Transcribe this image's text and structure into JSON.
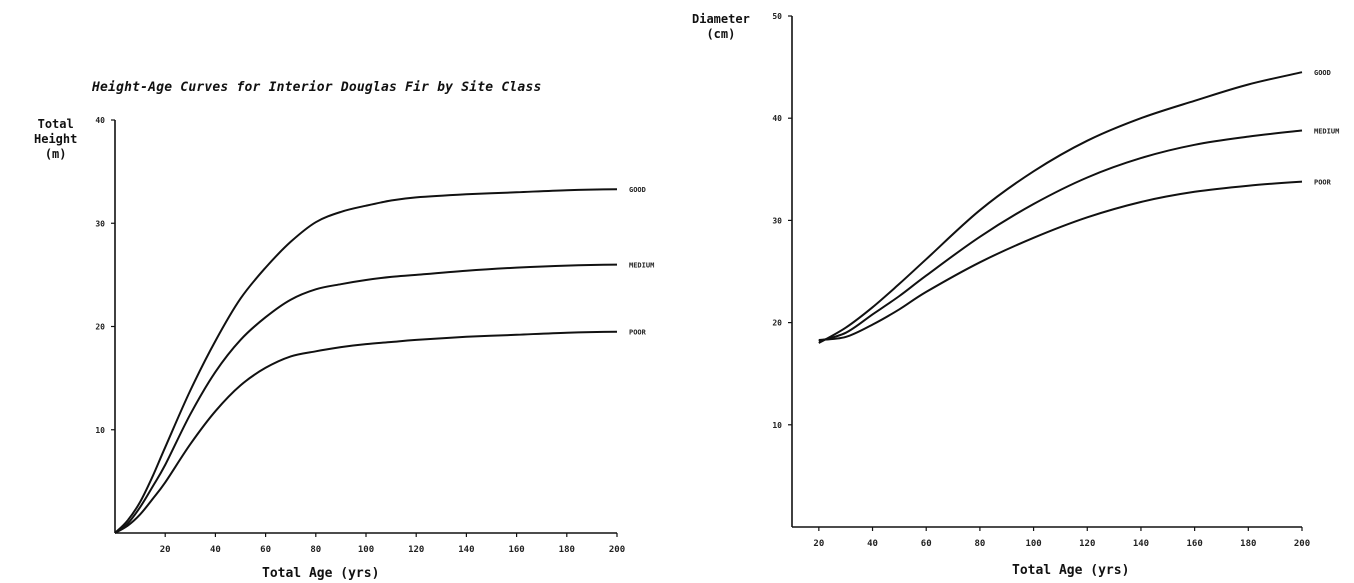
{
  "chart_data": [
    {
      "type": "line",
      "title": "Height-Age Curves for Interior Douglas Fir by Site Class",
      "ylabel_lines": [
        "Total",
        "Height",
        "(m)"
      ],
      "xlabel": "Total Age (yrs)",
      "xlim": [
        0,
        200
      ],
      "ylim": [
        0,
        40
      ],
      "xticks": [
        20,
        40,
        60,
        80,
        100,
        120,
        140,
        160,
        180,
        200
      ],
      "xtick_labels": [
        "20",
        "40",
        "60",
        "80",
        "100",
        "120",
        "140",
        "160",
        "180",
        "200"
      ],
      "yticks": [
        10,
        20,
        30,
        40
      ],
      "ytick_labels": [
        "10",
        "20",
        "30",
        "40"
      ],
      "grid": false,
      "series": [
        {
          "name": "GOOD",
          "x": [
            0,
            5,
            10,
            15,
            20,
            30,
            40,
            50,
            60,
            70,
            80,
            90,
            100,
            110,
            120,
            140,
            160,
            180,
            200
          ],
          "y": [
            0,
            1.2,
            3,
            5.5,
            8.3,
            13.8,
            18.6,
            22.7,
            25.7,
            28.2,
            30.1,
            31.1,
            31.7,
            32.2,
            32.5,
            32.8,
            33.0,
            33.2,
            33.3
          ]
        },
        {
          "name": "MEDIUM",
          "x": [
            0,
            5,
            10,
            15,
            20,
            30,
            40,
            50,
            60,
            70,
            80,
            90,
            100,
            110,
            120,
            140,
            160,
            180,
            200
          ],
          "y": [
            0,
            0.9,
            2.5,
            4.5,
            6.6,
            11.5,
            15.6,
            18.7,
            20.9,
            22.6,
            23.6,
            24.1,
            24.5,
            24.8,
            25.0,
            25.4,
            25.7,
            25.9,
            26.0
          ]
        },
        {
          "name": "POOR",
          "x": [
            0,
            5,
            10,
            15,
            20,
            30,
            40,
            50,
            60,
            70,
            80,
            90,
            100,
            110,
            120,
            140,
            160,
            180,
            200
          ],
          "y": [
            0,
            0.7,
            1.8,
            3.3,
            4.9,
            8.6,
            11.8,
            14.3,
            16.0,
            17.1,
            17.6,
            18.0,
            18.3,
            18.5,
            18.7,
            19.0,
            19.2,
            19.4,
            19.5
          ]
        }
      ]
    },
    {
      "type": "line",
      "ylabel_lines": [
        "Diameter",
        "(cm)"
      ],
      "xlabel": "Total Age (yrs)",
      "xlim": [
        10,
        200
      ],
      "ylim": [
        0,
        50
      ],
      "xticks": [
        20,
        40,
        60,
        80,
        100,
        120,
        140,
        160,
        180,
        200
      ],
      "xtick_labels": [
        "20",
        "40",
        "60",
        "80",
        "100",
        "120",
        "140",
        "160",
        "180",
        "200"
      ],
      "yticks": [
        10,
        20,
        30,
        40,
        50
      ],
      "ytick_labels": [
        "10",
        "20",
        "30",
        "40",
        "50"
      ],
      "grid": false,
      "series": [
        {
          "name": "GOOD",
          "x": [
            20,
            30,
            40,
            50,
            60,
            80,
            100,
            120,
            140,
            160,
            180,
            200
          ],
          "y": [
            18,
            19.5,
            21.5,
            23.8,
            26.2,
            31,
            34.8,
            37.8,
            40,
            41.7,
            43.3,
            44.5
          ]
        },
        {
          "name": "MEDIUM",
          "x": [
            20,
            30,
            40,
            50,
            60,
            80,
            100,
            120,
            140,
            160,
            180,
            200
          ],
          "y": [
            18.2,
            19,
            20.8,
            22.6,
            24.6,
            28.4,
            31.6,
            34.2,
            36.1,
            37.4,
            38.2,
            38.8
          ]
        },
        {
          "name": "POOR",
          "x": [
            20,
            30,
            40,
            50,
            60,
            80,
            100,
            120,
            140,
            160,
            180,
            200
          ],
          "y": [
            18.3,
            18.6,
            19.8,
            21.3,
            23,
            25.9,
            28.3,
            30.3,
            31.8,
            32.8,
            33.4,
            33.8
          ]
        }
      ]
    }
  ]
}
